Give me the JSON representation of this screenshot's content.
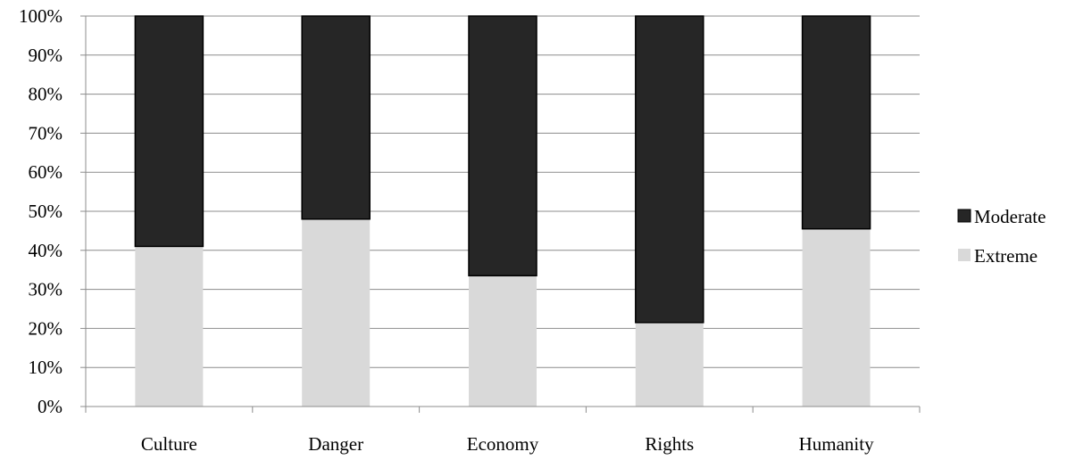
{
  "chart_data": {
    "type": "bar",
    "stacked": true,
    "percent_stacked": true,
    "title": "",
    "xlabel": "",
    "ylabel": "",
    "categories": [
      "Culture",
      "Danger",
      "Economy",
      "Rights",
      "Humanity"
    ],
    "series": [
      {
        "name": "Extreme",
        "values": [
          41,
          48,
          33.5,
          21.5,
          45.5
        ],
        "color": "#d9d9d9"
      },
      {
        "name": "Moderate",
        "values": [
          59,
          52,
          66.5,
          78.5,
          54.5
        ],
        "color": "#262626"
      }
    ],
    "ylim": [
      0,
      100
    ],
    "yticks": [
      "0%",
      "10%",
      "20%",
      "30%",
      "40%",
      "50%",
      "60%",
      "70%",
      "80%",
      "90%",
      "100%"
    ],
    "grid": true,
    "legend_position": "right",
    "legend_order": [
      "Moderate",
      "Extreme"
    ]
  }
}
